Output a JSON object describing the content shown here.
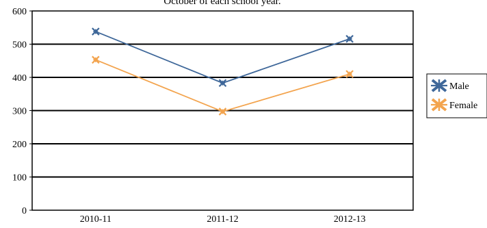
{
  "chart_data": {
    "type": "line",
    "title": "October of each school year.",
    "categories": [
      "2010-11",
      "2011-12",
      "2012-13"
    ],
    "series": [
      {
        "name": "Male",
        "values": [
          538,
          383,
          516
        ],
        "color": "#3E6799",
        "marker": "star"
      },
      {
        "name": "Female",
        "values": [
          453,
          297,
          410
        ],
        "color": "#F3A44E",
        "marker": "star"
      }
    ],
    "ylim": [
      0,
      600
    ],
    "yticks": [
      0,
      100,
      200,
      300,
      400,
      500,
      600
    ],
    "xlabel": "",
    "ylabel": "",
    "grid": true,
    "legend": "right"
  }
}
